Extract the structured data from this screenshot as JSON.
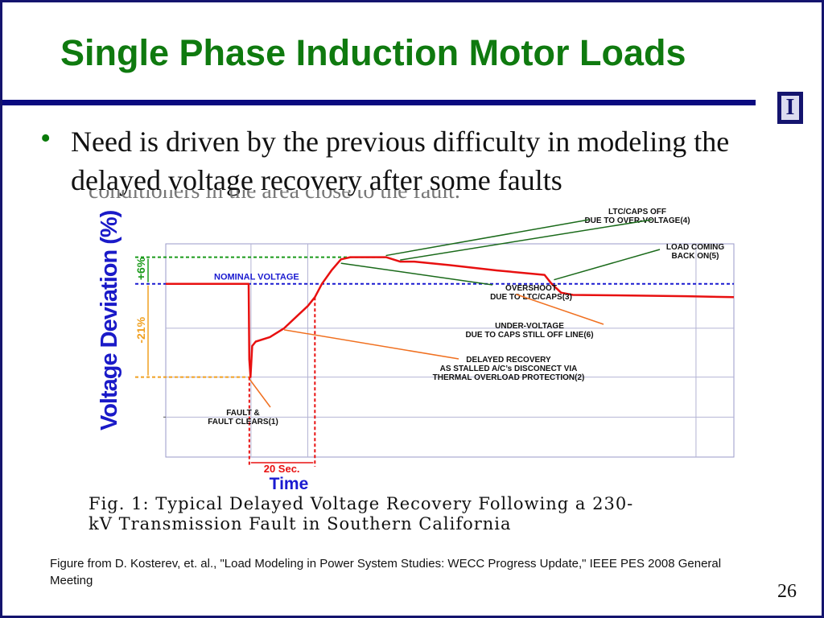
{
  "slide": {
    "title": "Single Phase Induction Motor Loads",
    "bullet": "Need is driven by the previous difficulty in modeling the delayed voltage recovery after some faults",
    "ghost_text": "conditioners in the area close to the fault.",
    "caption_line1": "Fig. 1: Typical Delayed Voltage Recovery Following a 230-",
    "caption_line2": "kV Transmission Fault in Southern California",
    "source": "Figure from D. Kosterev, et. al., \"Load Modeling in Power System Studies: WECC Progress Update,\" IEEE PES 2008 General Meeting",
    "page_number": "26",
    "logo_letter": "I",
    "logo_icon": "university-block-i-logo"
  },
  "colors": {
    "title": "#0f7a0f",
    "rule": "#0a0a80",
    "trace": "#e81010",
    "nominal_line": "#1a1ad0",
    "overshoot_line": "#1a9a1a",
    "dip_line": "#f0a020",
    "ylabel": "#1a1ac8",
    "annotation_arrow_green": "#1a6a1a",
    "annotation_arrow_orange": "#f07020"
  },
  "chart_data": {
    "type": "line",
    "title": "",
    "xlabel": "Time",
    "ylabel": "Voltage Deviation (%)",
    "reference_lines": [
      {
        "label": "NOMINAL VOLTAGE",
        "y": 0
      },
      {
        "label": "+6%",
        "y": 6
      },
      {
        "label": "-21%",
        "y": -21
      }
    ],
    "time_marker_label": "20 Sec.",
    "grid": true,
    "series": [
      {
        "values_x": [
          0,
          35,
          35.3,
          35.8,
          36.5,
          38,
          44,
          50,
          56,
          60,
          63,
          66,
          70,
          74,
          78,
          83,
          88,
          93,
          99,
          105,
          120,
          140,
          160,
          163,
          167,
          172,
          190,
          220,
          240
        ],
        "values_y": [
          0,
          0,
          -17,
          -21,
          -14,
          -13,
          -12,
          -10,
          -7,
          -5,
          -3,
          0,
          3,
          5.5,
          6,
          6,
          6,
          6,
          5,
          5,
          4.2,
          3,
          2,
          0,
          -2,
          -2.5,
          -2.6,
          -2.8,
          -3
        ]
      }
    ],
    "annotations": [
      {
        "text": "LTC/CAPS OFF DUE TO OVER-VOLTAGE",
        "ref": "(4)"
      },
      {
        "text": "LOAD COMING BACK ON",
        "ref": "(5)"
      },
      {
        "text": "OVERSHOOT DUE TO LTC/CAPS",
        "ref": "(3)"
      },
      {
        "text": "UNDER-VOLTAGE DUE TO CAPS STILL OFF LINE",
        "ref": "(6)"
      },
      {
        "text": "DELAYED RECOVERY AS STALLED A/C's DISCONECT VIA THERMAL OVERLOAD PROTECTION",
        "ref": "(2)"
      },
      {
        "text": "FAULT & FAULT CLEARS",
        "ref": "(1)"
      }
    ]
  }
}
